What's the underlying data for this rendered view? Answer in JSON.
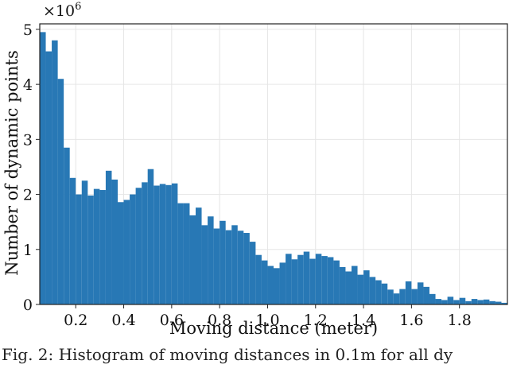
{
  "chart_data": {
    "type": "bar",
    "subtype": "histogram",
    "xlabel": "Moving distance (meter)",
    "ylabel": "Number of dynamic points",
    "y_multiplier_label": "×10",
    "y_multiplier_exp": "6",
    "bin_start": 0.05,
    "bin_width": 0.025,
    "xlim": [
      0.05,
      2.0
    ],
    "ylim": [
      0,
      5.1
    ],
    "xticks": [
      0.2,
      0.4,
      0.6,
      0.8,
      1.0,
      1.2,
      1.4,
      1.6,
      1.8
    ],
    "xtick_labels": [
      "0.2",
      "0.4",
      "0.6",
      "0.8",
      "1.0",
      "1.2",
      "1.4",
      "1.6",
      "1.8"
    ],
    "yticks": [
      0,
      1,
      2,
      3,
      4,
      5
    ],
    "ytick_labels": [
      "0",
      "1",
      "2",
      "3",
      "4",
      "5"
    ],
    "grid": true,
    "bar_color": "#2878b5",
    "values": [
      4.95,
      4.6,
      4.8,
      4.1,
      2.85,
      2.3,
      2.0,
      2.25,
      1.98,
      2.1,
      2.08,
      2.43,
      2.27,
      1.86,
      1.9,
      2.0,
      2.12,
      2.22,
      2.46,
      2.16,
      2.19,
      2.17,
      2.2,
      1.84,
      1.84,
      1.62,
      1.76,
      1.44,
      1.6,
      1.38,
      1.52,
      1.35,
      1.44,
      1.34,
      1.3,
      1.14,
      0.9,
      0.8,
      0.7,
      0.66,
      0.76,
      0.92,
      0.82,
      0.9,
      0.96,
      0.83,
      0.92,
      0.88,
      0.86,
      0.8,
      0.68,
      0.6,
      0.7,
      0.54,
      0.62,
      0.5,
      0.44,
      0.38,
      0.27,
      0.2,
      0.28,
      0.42,
      0.28,
      0.4,
      0.32,
      0.19,
      0.1,
      0.08,
      0.14,
      0.08,
      0.12,
      0.06,
      0.1,
      0.08,
      0.09,
      0.06,
      0.05,
      0.03
    ]
  },
  "caption": "Fig. 2: Histogram of moving distances in 0.1m for all dy"
}
